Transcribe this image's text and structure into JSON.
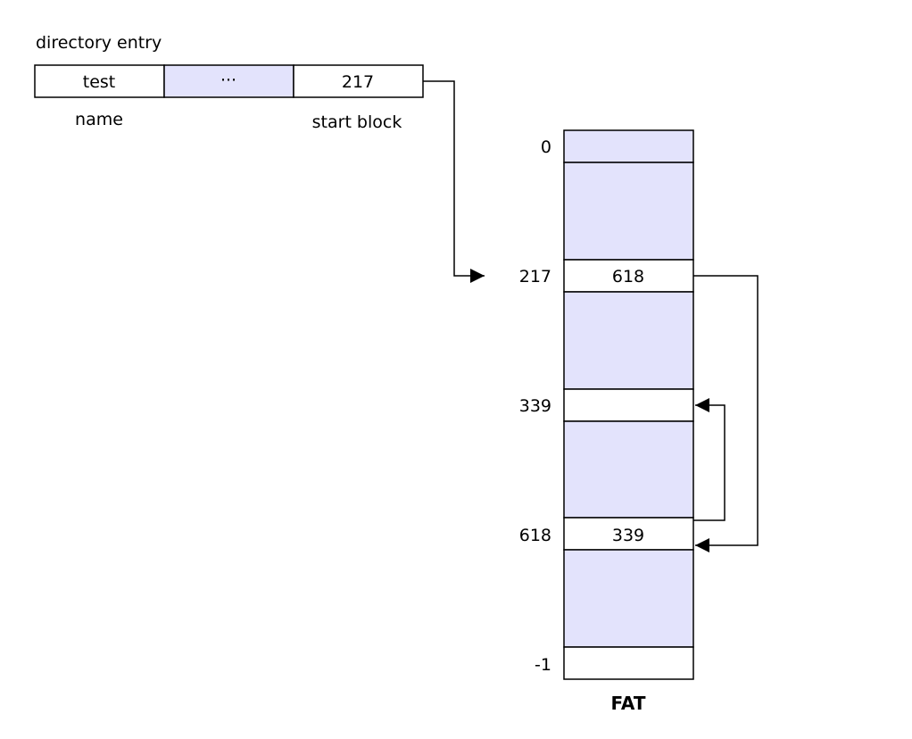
{
  "colors": {
    "shaded_fill": "#e3e3fc",
    "plain_fill": "#ffffff",
    "line": "#000000"
  },
  "directory_entry": {
    "title": "directory entry",
    "fields": [
      "test",
      "···",
      "217"
    ],
    "name_label": "name",
    "start_block_label": "start block"
  },
  "fat": {
    "title": "FAT",
    "row_labels": [
      "0",
      "217",
      "339",
      "618",
      "-1"
    ],
    "values": {
      "entry_217": "618",
      "entry_618": "339"
    }
  }
}
